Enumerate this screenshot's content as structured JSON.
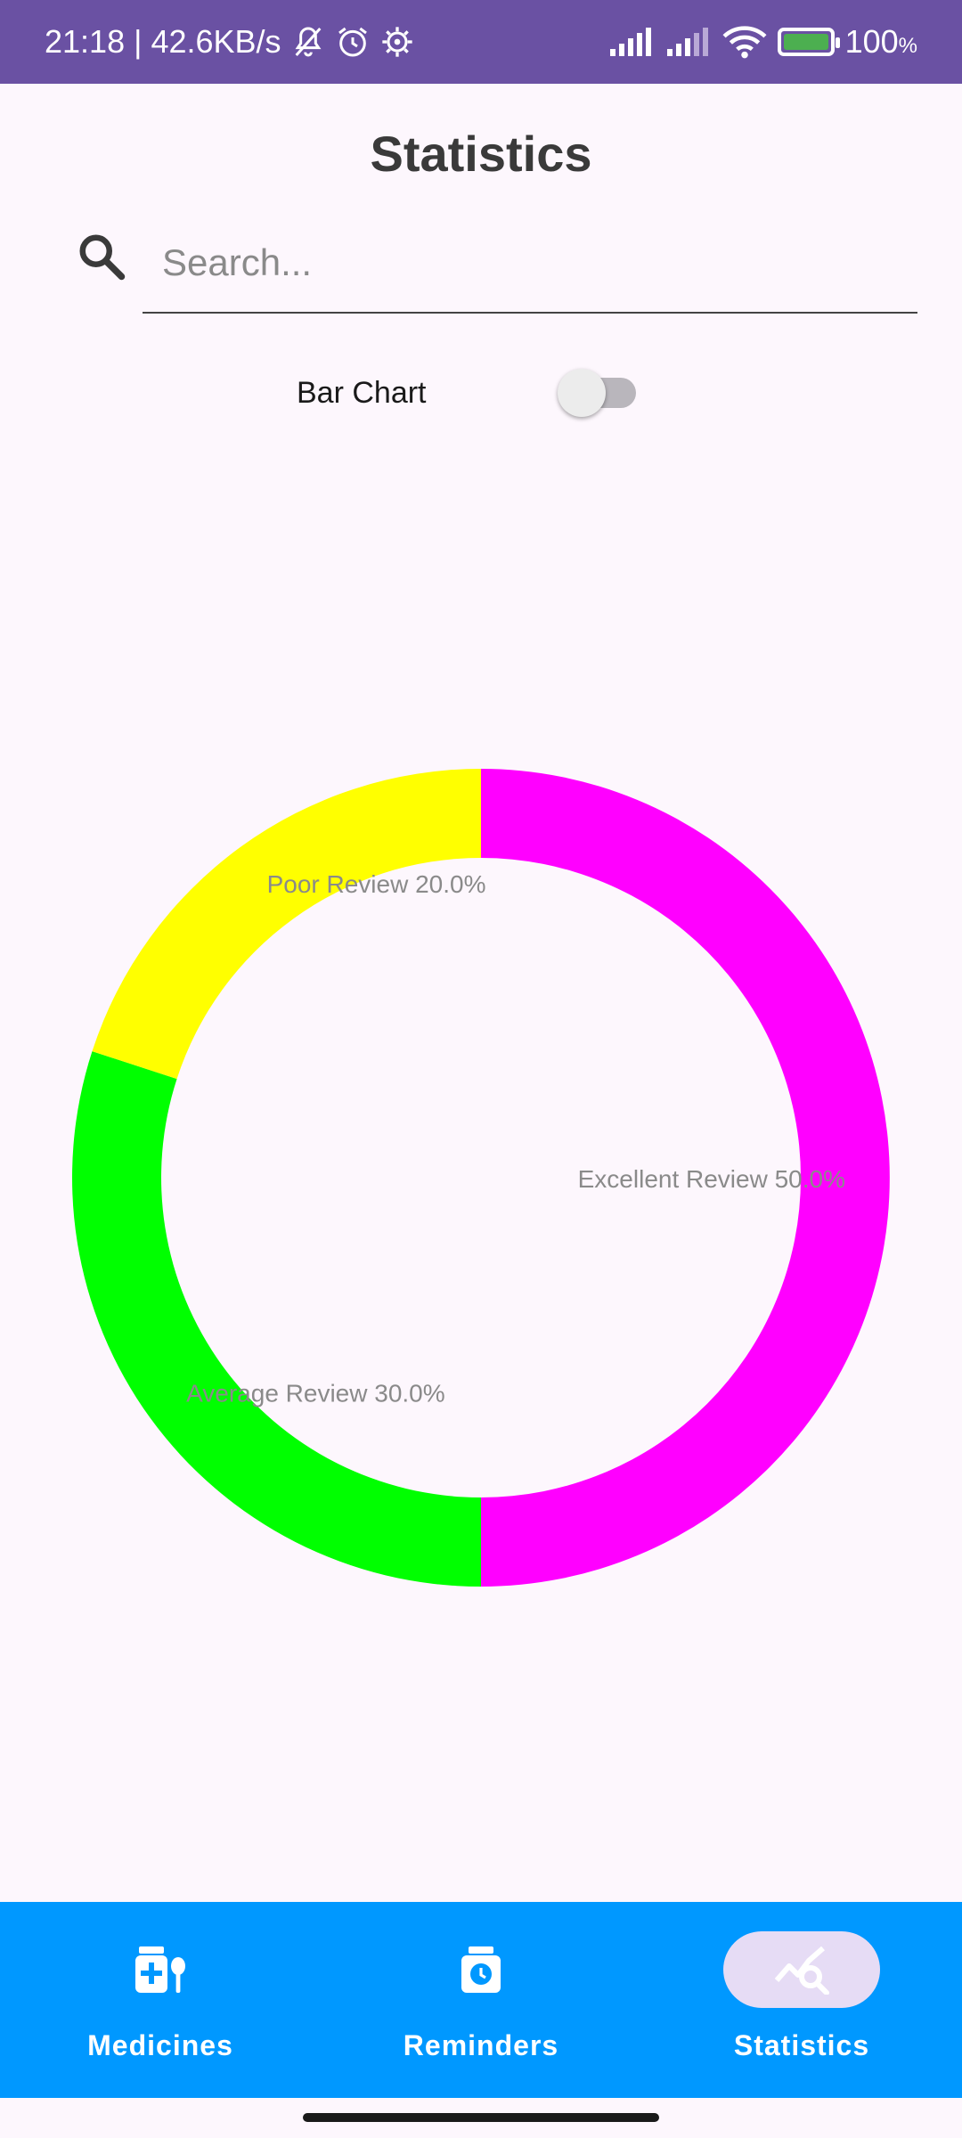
{
  "status_bar": {
    "time_speed": "21:18 | 42.6KB/s",
    "battery_percent": "100",
    "battery_unit": "%",
    "icons": [
      "bell-off-icon",
      "alarm-icon",
      "gear-icon",
      "signal-icon",
      "signal-icon",
      "wifi-icon",
      "battery-charging-icon"
    ]
  },
  "header": {
    "title": "Statistics"
  },
  "search": {
    "placeholder": "Search...",
    "value": ""
  },
  "toggle": {
    "label": "Bar Chart",
    "on": false
  },
  "chart_data": {
    "type": "pie",
    "donut": true,
    "slices": [
      {
        "label": "Excellent Review 50.0%",
        "name": "Excellent Review",
        "value": 50.0,
        "color": "#ff00ff"
      },
      {
        "label": "Average Review 30.0%",
        "name": "Average Review",
        "value": 30.0,
        "color": "#00ff00"
      },
      {
        "label": "Poor Review 20.0%",
        "name": "Poor Review",
        "value": 20.0,
        "color": "#ffff00"
      }
    ]
  },
  "nav": {
    "items": [
      {
        "label": "Medicines",
        "icon": "medicine-icon",
        "active": false
      },
      {
        "label": "Reminders",
        "icon": "medicine-timer-icon",
        "active": false
      },
      {
        "label": "Statistics",
        "icon": "statistics-search-icon",
        "active": true
      }
    ]
  },
  "colors": {
    "status_bar": "#6a51a3",
    "nav_bg": "#0098ff",
    "nav_active_pill": "#e6dcf5",
    "page_bg": "#fdf7fd"
  }
}
